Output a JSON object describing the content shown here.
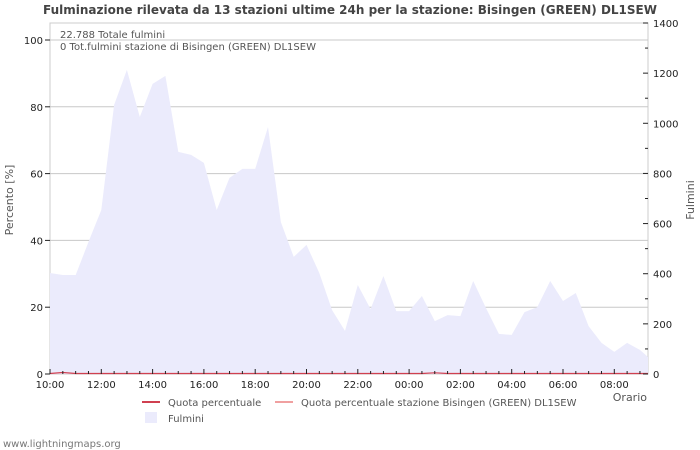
{
  "chart_data": {
    "type": "area",
    "title": "Fulminazione rilevata da 13 stazioni ultime 24h per la stazione: Bisingen (GREEN) DL1SEW",
    "info_lines": [
      "22.788 Totale fulmini",
      "0 Tot.fulmini stazione di Bisingen (GREEN) DL1SEW"
    ],
    "xlabel": "Orario",
    "ylabel_left": "Percento   [%]",
    "ylabel_right": "Fulmini",
    "x_ticks": [
      "10:00",
      "12:00",
      "14:00",
      "16:00",
      "18:00",
      "20:00",
      "22:00",
      "00:00",
      "02:00",
      "04:00",
      "06:00",
      "08:00"
    ],
    "y_left_ticks": [
      0,
      20,
      40,
      60,
      80,
      100
    ],
    "y_right_ticks": [
      0,
      200,
      400,
      600,
      800,
      1000,
      1200,
      1400
    ],
    "ylim_left": [
      0,
      105
    ],
    "ylim_right": [
      0,
      1400
    ],
    "grid": true,
    "legend_position": "bottom",
    "legend": [
      {
        "label": "Quota percentuale",
        "type": "line",
        "color": "#d04050"
      },
      {
        "label": "Quota percentuale stazione Bisingen (GREEN) DL1SEW",
        "type": "line",
        "color": "#f0a0a0"
      },
      {
        "label": "Fulmini",
        "type": "area",
        "color": "#ebebfc"
      }
    ],
    "x": [
      "10:00",
      "10:30",
      "11:00",
      "11:30",
      "12:00",
      "12:30",
      "13:00",
      "13:30",
      "14:00",
      "14:30",
      "15:00",
      "15:30",
      "16:00",
      "16:30",
      "17:00",
      "17:30",
      "18:00",
      "18:30",
      "19:00",
      "19:30",
      "20:00",
      "20:30",
      "21:00",
      "21:30",
      "22:00",
      "22:30",
      "23:00",
      "23:30",
      "00:00",
      "00:30",
      "01:00",
      "01:30",
      "02:00",
      "02:30",
      "03:00",
      "03:30",
      "04:00",
      "04:30",
      "05:00",
      "05:30",
      "06:00",
      "06:30",
      "07:00",
      "07:30",
      "08:00",
      "08:30",
      "09:00",
      "09:20"
    ],
    "series": [
      {
        "name": "Fulmini",
        "axis": "right",
        "values": [
          403,
          395,
          395,
          527,
          654,
          1073,
          1213,
          1025,
          1157,
          1189,
          886,
          874,
          842,
          654,
          782,
          818,
          818,
          985,
          606,
          467,
          515,
          403,
          255,
          172,
          355,
          259,
          391,
          251,
          251,
          311,
          211,
          235,
          231,
          371,
          263,
          160,
          156,
          247,
          267,
          371,
          291,
          323,
          191,
          124,
          88,
          124,
          96,
          68
        ]
      },
      {
        "name": "Quota percentuale",
        "axis": "left",
        "values": [
          0,
          0.3,
          0,
          0,
          0,
          0,
          0,
          0,
          0,
          0,
          0,
          0,
          0,
          0,
          0,
          0,
          0,
          0,
          0,
          0,
          0,
          0,
          0,
          0,
          0,
          0,
          0,
          0,
          0,
          0,
          0.2,
          0,
          0,
          0,
          0,
          0,
          0,
          0,
          0,
          0,
          0,
          0,
          0,
          0,
          0,
          0,
          0,
          0
        ]
      }
    ]
  },
  "footer": "www.lightningmaps.org"
}
